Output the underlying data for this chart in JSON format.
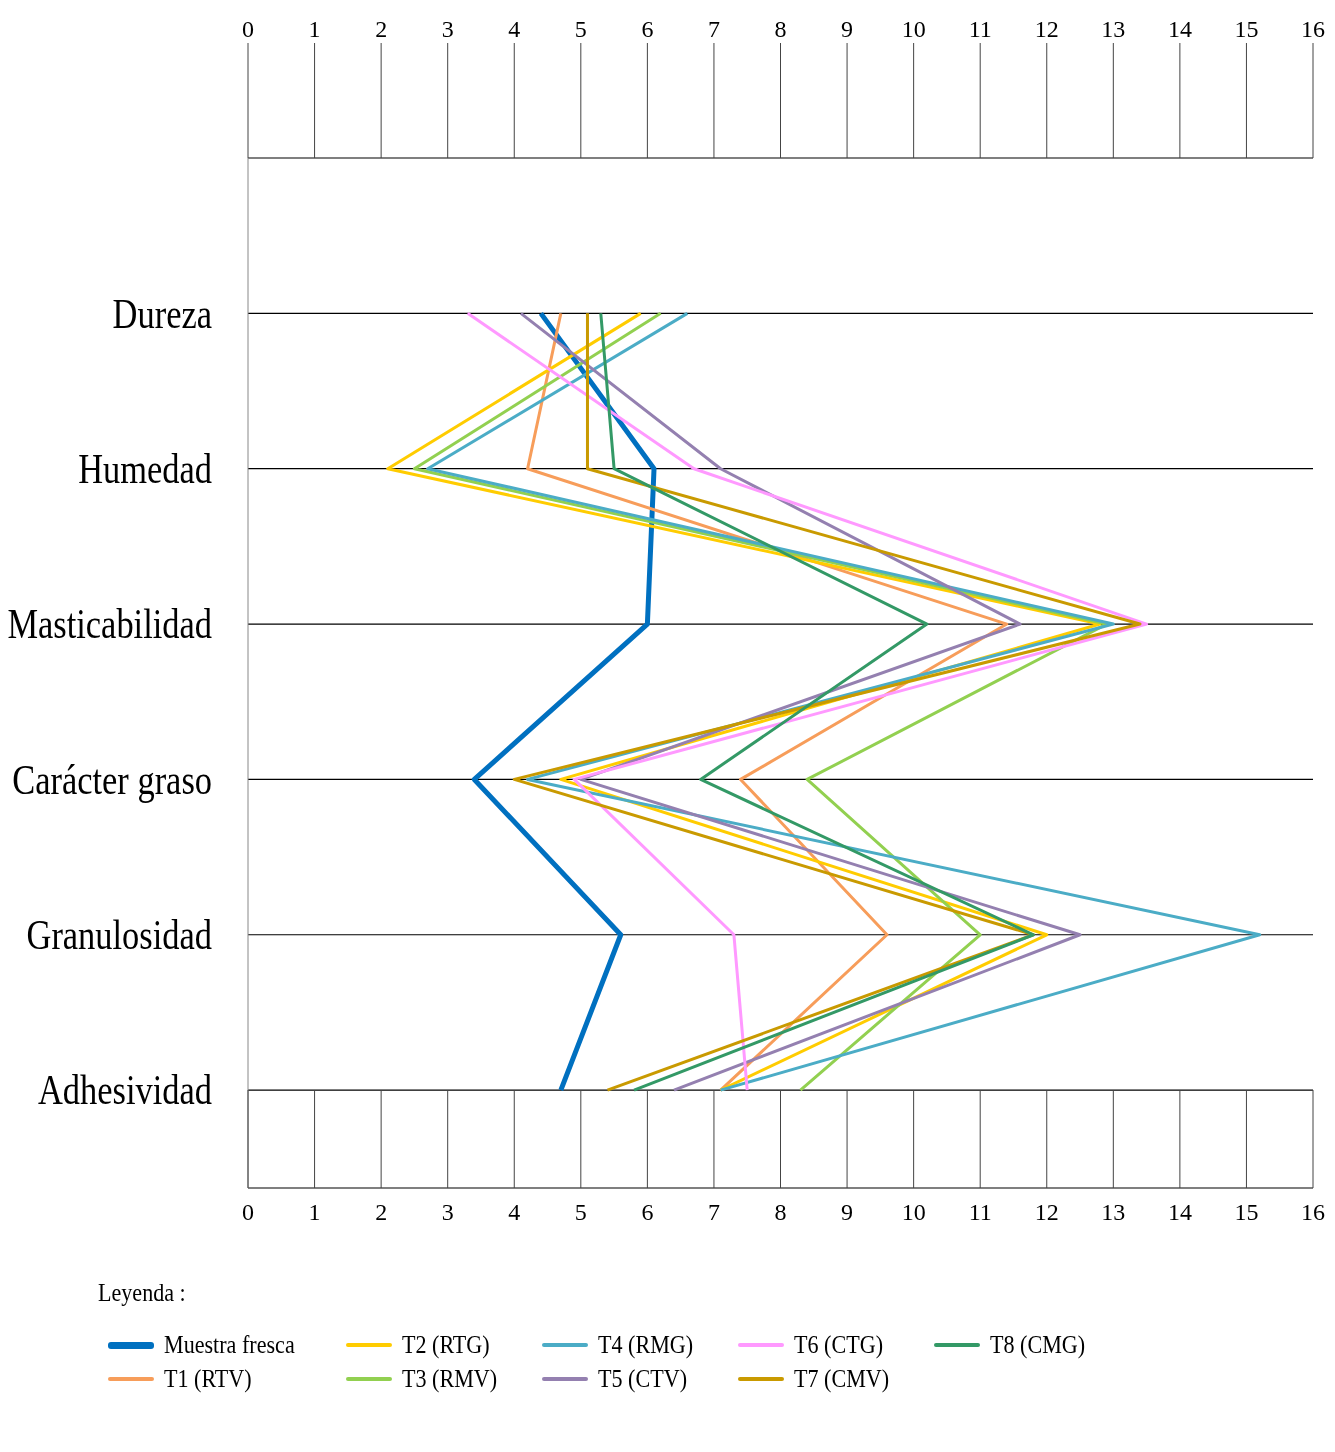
{
  "chart_data": {
    "type": "line",
    "orientation": "horizontal",
    "categories": [
      "Dureza",
      "Humedad",
      "Masticabilidad",
      "Carácter graso",
      "Granulosidad",
      "Adhesividad"
    ],
    "xlim": [
      0,
      16
    ],
    "xticks": [
      0,
      1,
      2,
      3,
      4,
      5,
      6,
      7,
      8,
      9,
      10,
      11,
      12,
      13,
      14,
      15,
      16
    ],
    "x2lim": [
      0,
      16
    ],
    "x2ticks": [
      0,
      1,
      2,
      3,
      4,
      5,
      6,
      7,
      8,
      9,
      10,
      11,
      12,
      13,
      14,
      15,
      16
    ],
    "grid": "y",
    "legend": "bottom",
    "legend_title": "Leyenda :",
    "marker": "none",
    "line_style": "solid",
    "series": [
      {
        "name": "Muestra fresca",
        "color": "#0070c0",
        "values": [
          4.4,
          6.1,
          6.0,
          3.4,
          5.6,
          4.7
        ]
      },
      {
        "name": "T1 (RTV)",
        "color": "#f79d5a",
        "values": [
          4.7,
          4.2,
          11.4,
          7.4,
          9.6,
          7.1
        ]
      },
      {
        "name": "T2 (RTG)",
        "color": "#ffcc00",
        "values": [
          5.9,
          2.1,
          12.8,
          4.7,
          12.0,
          7.1
        ]
      },
      {
        "name": "T3 (RMV)",
        "color": "#92d050",
        "values": [
          6.2,
          2.5,
          12.9,
          8.4,
          11.0,
          8.3
        ]
      },
      {
        "name": "T4 (RMG)",
        "color": "#4bacc6",
        "values": [
          6.6,
          2.7,
          13.0,
          4.2,
          15.2,
          7.1
        ]
      },
      {
        "name": "T5 (CTV)",
        "color": "#9480b0",
        "values": [
          4.1,
          7.1,
          11.6,
          5.0,
          12.5,
          6.4
        ]
      },
      {
        "name": "T6 (CTG)",
        "color": "#ff99ff",
        "values": [
          3.3,
          6.7,
          13.5,
          4.9,
          7.3,
          7.5
        ]
      },
      {
        "name": "T7 (CMV)",
        "color": "#c99a00",
        "values": [
          5.1,
          5.1,
          13.4,
          4.0,
          11.8,
          5.4
        ]
      },
      {
        "name": "T8 (CMG)",
        "color": "#339966",
        "values": [
          5.3,
          5.5,
          10.2,
          6.8,
          11.8,
          5.8
        ]
      }
    ]
  }
}
